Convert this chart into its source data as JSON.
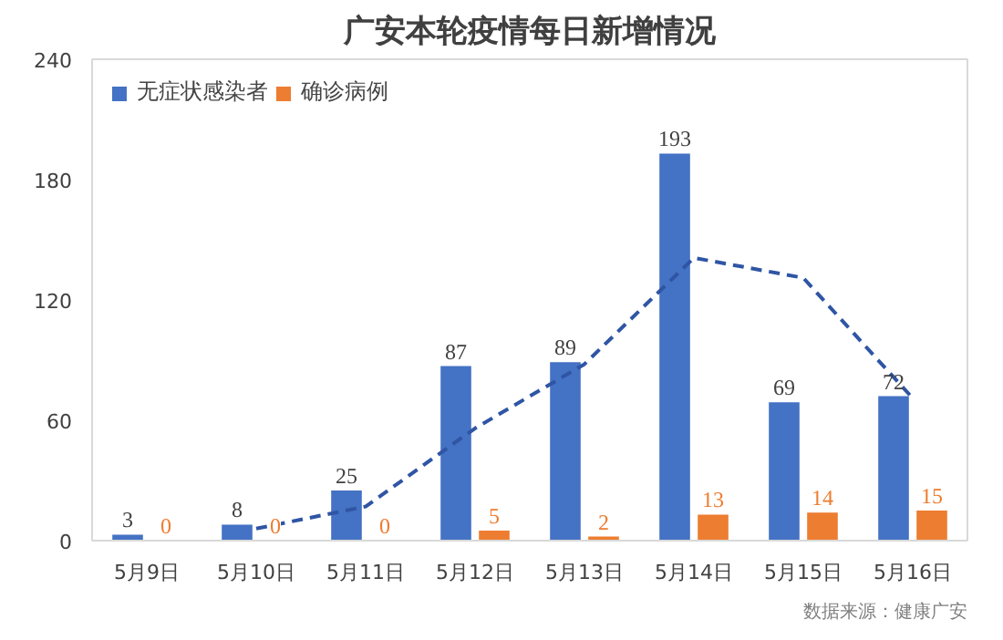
{
  "chart_data": {
    "type": "bar",
    "title": "广安本轮疫情每日新增情况",
    "categories": [
      "5月9日",
      "5月10日",
      "5月11日",
      "5月12日",
      "5月13日",
      "5月14日",
      "5月15日",
      "5月16日"
    ],
    "series": [
      {
        "name": "无症状感染者",
        "color": "#4472c4",
        "values": [
          3,
          8,
          25,
          87,
          89,
          193,
          69,
          72
        ],
        "value_labels": [
          "3",
          "8",
          "25",
          "87",
          "89",
          "193",
          "69",
          "72"
        ]
      },
      {
        "name": "确诊病例",
        "color": "#ed7d31",
        "values": [
          0,
          0,
          0,
          5,
          2,
          13,
          14,
          15
        ],
        "value_labels": [
          "0",
          "0",
          "0",
          "5",
          "2",
          "13",
          "14",
          "15"
        ]
      },
      {
        "type": "line",
        "color": "#2f55a4",
        "line_style": "dashed",
        "marker": "none",
        "values": [
          null,
          6,
          17,
          56,
          88,
          141,
          131,
          71
        ]
      }
    ],
    "ylim": [
      0,
      240
    ],
    "yticks": [
      0,
      60,
      120,
      180,
      240
    ],
    "grid": false,
    "legend": "top left",
    "annotations": [
      "数据来源：健康广安"
    ]
  }
}
